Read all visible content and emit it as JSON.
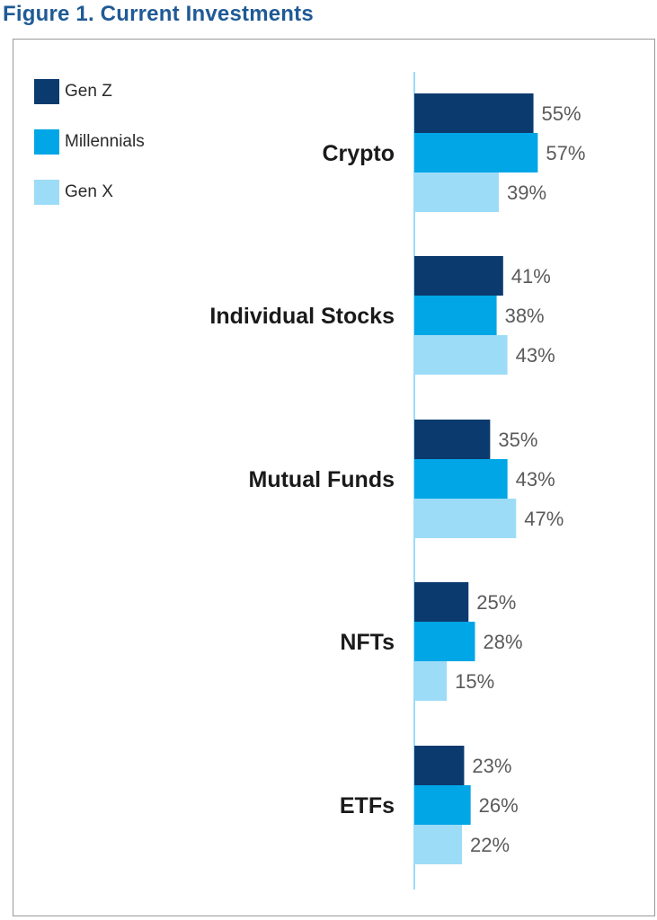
{
  "figure_title": "Figure 1. Current Investments",
  "colors": {
    "gen_z": "#0b3a6e",
    "millennials": "#00a6e6",
    "gen_x": "#9ddcf7",
    "title": "#1f5a96",
    "axis": "#9ddcf7"
  },
  "chart_data": {
    "type": "bar",
    "orientation": "horizontal",
    "title": "Figure 1. Current Investments",
    "categories": [
      "Crypto",
      "Individual Stocks",
      "Mutual Funds",
      "NFTs",
      "ETFs"
    ],
    "series": [
      {
        "name": "Gen Z",
        "color": "#0b3a6e",
        "values": [
          55,
          41,
          35,
          25,
          23
        ]
      },
      {
        "name": "Millennials",
        "color": "#00a6e6",
        "values": [
          57,
          38,
          43,
          28,
          26
        ]
      },
      {
        "name": "Gen X",
        "color": "#9ddcf7",
        "values": [
          39,
          43,
          47,
          15,
          22
        ]
      }
    ],
    "value_suffix": "%",
    "xlim": [
      0,
      100
    ],
    "legend_position": "top-left",
    "grid": false
  }
}
